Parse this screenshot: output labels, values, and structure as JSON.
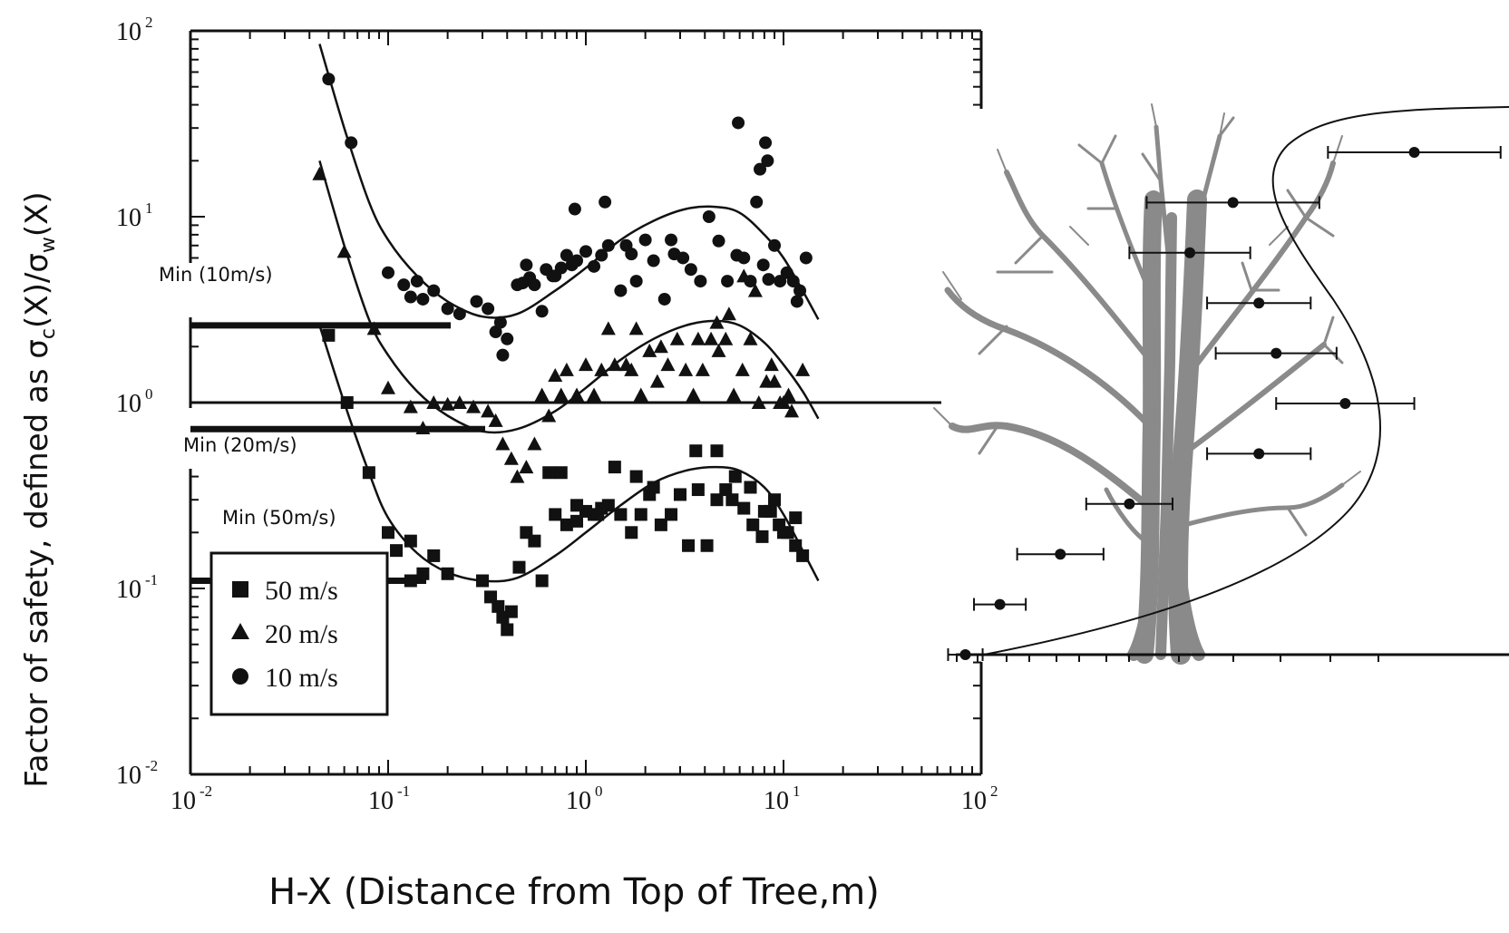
{
  "axes": {
    "ylabel_prefix": "Factor of safety, defined as σ",
    "ylabel_sub1": "c",
    "ylabel_mid": "(X)/σ",
    "ylabel_sub2": "w",
    "ylabel_suffix": "(X)",
    "xlabel": "H-X (Distance from Top of Tree,m)",
    "tick_base": "10",
    "x_tick_exponents": [
      "-2",
      "-1",
      "0",
      "1",
      "2"
    ],
    "y_tick_exponents": [
      "2",
      "1",
      "0",
      "-1",
      "-2"
    ]
  },
  "annotations": {
    "min10": "Min (10m/s)",
    "min20": "Min (20m/s)",
    "min50": "Min (50m/s)"
  },
  "legend": {
    "items": [
      {
        "label": "50 m/s",
        "marker": "square"
      },
      {
        "label": "20 m/s",
        "marker": "triangle"
      },
      {
        "label": "10 m/s",
        "marker": "circle"
      }
    ]
  },
  "colors": {
    "ink": "#111111",
    "tree": "#8a8a8a"
  },
  "chart_data": [
    {
      "type": "scatter",
      "xscale": "log",
      "yscale": "log",
      "xlim": [
        0.01,
        100
      ],
      "ylim": [
        0.01,
        100
      ],
      "reference_line_y": 1.0,
      "min_levels": {
        "10 m/s": 2.6,
        "20 m/s": 0.72,
        "50 m/s": 0.11
      },
      "series": [
        {
          "name": "50 m/s",
          "marker": "square",
          "x": [
            0.05,
            0.062,
            0.08,
            0.1,
            0.11,
            0.13,
            0.15,
            0.17,
            0.2,
            0.13,
            0.3,
            0.33,
            0.36,
            0.38,
            0.4,
            0.42,
            0.46,
            0.5,
            0.55,
            0.6,
            0.7,
            0.8,
            0.9,
            1.0,
            1.1,
            1.2,
            1.3,
            1.5,
            1.7,
            1.9,
            2.1,
            2.4,
            2.7,
            3.0,
            3.3,
            3.7,
            4.1,
            4.6,
            5.1,
            5.7,
            6.3,
            7.0,
            7.8,
            8.6,
            9.5,
            10.5,
            11.5,
            12.5,
            0.9,
            0.75,
            1.4,
            1.8,
            2.2,
            3.6,
            4.6,
            5.5,
            6.8,
            8.0,
            9.0,
            10.0,
            11.5,
            0.65,
            1.15
          ],
          "y": [
            2.3,
            1.0,
            0.42,
            0.2,
            0.16,
            0.18,
            0.12,
            0.15,
            0.12,
            0.11,
            0.11,
            0.09,
            0.08,
            0.07,
            0.06,
            0.075,
            0.13,
            0.2,
            0.18,
            0.11,
            0.25,
            0.22,
            0.23,
            0.26,
            0.25,
            0.27,
            0.28,
            0.25,
            0.2,
            0.25,
            0.32,
            0.22,
            0.25,
            0.32,
            0.17,
            0.34,
            0.17,
            0.3,
            0.34,
            0.4,
            0.27,
            0.22,
            0.19,
            0.26,
            0.22,
            0.2,
            0.17,
            0.15,
            0.28,
            0.42,
            0.45,
            0.4,
            0.35,
            0.55,
            0.55,
            0.3,
            0.35,
            0.26,
            0.3,
            0.2,
            0.24,
            0.42,
            0.25
          ]
        },
        {
          "name": "20 m/s",
          "marker": "triangle",
          "x": [
            0.045,
            0.06,
            0.085,
            0.1,
            0.13,
            0.15,
            0.17,
            0.2,
            0.23,
            0.27,
            0.32,
            0.35,
            0.38,
            0.42,
            0.45,
            0.5,
            0.55,
            0.6,
            0.65,
            0.75,
            0.8,
            0.9,
            1.0,
            1.1,
            1.2,
            1.4,
            1.6,
            1.9,
            2.1,
            2.4,
            2.6,
            2.9,
            3.2,
            3.5,
            3.9,
            4.3,
            4.7,
            5.1,
            5.6,
            6.2,
            6.8,
            7.5,
            8.2,
            9.0,
            10.0,
            11.0,
            12.5,
            0.7,
            1.3,
            1.7,
            2.3,
            3.7,
            4.6,
            5.3,
            6.3,
            7.2,
            8.7,
            9.6,
            10.6,
            1.8
          ],
          "y": [
            17,
            6.5,
            2.5,
            1.2,
            0.95,
            0.73,
            1.0,
            0.98,
            1.0,
            0.95,
            0.9,
            0.8,
            0.6,
            0.5,
            0.4,
            0.45,
            0.6,
            1.1,
            0.85,
            1.1,
            1.5,
            1.1,
            1.6,
            1.1,
            1.5,
            1.6,
            1.6,
            1.1,
            1.9,
            2.0,
            1.6,
            2.2,
            1.5,
            1.1,
            1.5,
            2.2,
            1.9,
            2.2,
            1.1,
            1.5,
            2.2,
            1.0,
            1.3,
            1.3,
            1.0,
            0.9,
            1.5,
            1.4,
            2.5,
            1.5,
            1.3,
            2.2,
            2.7,
            3.0,
            4.8,
            4.0,
            1.6,
            1.0,
            1.1,
            2.5
          ]
        },
        {
          "name": "10 m/s",
          "marker": "circle",
          "x": [
            0.05,
            0.065,
            0.1,
            0.12,
            0.13,
            0.14,
            0.15,
            0.17,
            0.2,
            0.23,
            0.28,
            0.32,
            0.35,
            0.37,
            0.38,
            0.4,
            0.45,
            0.48,
            0.5,
            0.52,
            0.55,
            0.6,
            0.63,
            0.68,
            0.75,
            0.8,
            0.85,
            0.9,
            1.0,
            1.1,
            1.2,
            1.3,
            1.5,
            1.6,
            1.8,
            2.0,
            2.2,
            2.5,
            2.8,
            3.1,
            3.4,
            3.8,
            4.2,
            4.7,
            5.2,
            5.8,
            6.3,
            6.8,
            7.3,
            7.9,
            8.4,
            9.0,
            9.6,
            10.4,
            11.2,
            12.1,
            13.0,
            0.88,
            0.7,
            1.25,
            1.7,
            2.7,
            5.9,
            7.6,
            8.1,
            8.3,
            11.7
          ],
          "y": [
            55,
            25,
            5.0,
            4.3,
            3.7,
            4.5,
            3.6,
            4.0,
            3.2,
            3.0,
            3.5,
            3.2,
            2.4,
            2.7,
            1.8,
            2.2,
            4.3,
            4.4,
            5.5,
            4.7,
            4.3,
            3.1,
            5.2,
            4.8,
            5.3,
            6.2,
            5.5,
            5.8,
            6.5,
            5.4,
            6.2,
            7.0,
            4.0,
            7.0,
            4.5,
            7.5,
            5.8,
            3.6,
            6.3,
            6.0,
            5.2,
            4.5,
            10.0,
            7.4,
            4.5,
            6.2,
            6.0,
            4.5,
            12.0,
            5.5,
            4.6,
            7.0,
            4.5,
            5.0,
            4.5,
            4.0,
            6.0,
            11.0,
            4.8,
            12.0,
            6.3,
            7.5,
            32,
            18,
            25,
            20,
            3.5
          ]
        }
      ],
      "fit_curves": [
        {
          "name": "10 m/s",
          "x": [
            0.045,
            0.06,
            0.08,
            0.1,
            0.14,
            0.2,
            0.3,
            0.45,
            0.7,
            1.0,
            1.5,
            2.2,
            3.2,
            4.5,
            6.0,
            8.0,
            10.0,
            12.5,
            15.0
          ],
          "y": [
            85,
            30,
            12,
            7.5,
            4.8,
            3.5,
            2.9,
            3.0,
            4.0,
            5.3,
            7.5,
            9.5,
            11.0,
            11.3,
            10.5,
            8.0,
            6.0,
            4.0,
            2.8
          ]
        },
        {
          "name": "20 m/s",
          "x": [
            0.045,
            0.06,
            0.08,
            0.1,
            0.14,
            0.2,
            0.3,
            0.45,
            0.7,
            1.0,
            1.5,
            2.2,
            3.2,
            4.5,
            6.0,
            8.0,
            10.0,
            12.5,
            15.0
          ],
          "y": [
            20,
            7.0,
            2.8,
            1.8,
            1.15,
            0.85,
            0.7,
            0.72,
            0.9,
            1.2,
            1.7,
            2.2,
            2.6,
            2.75,
            2.6,
            2.1,
            1.6,
            1.15,
            0.82
          ]
        },
        {
          "name": "50 m/s",
          "x": [
            0.045,
            0.06,
            0.08,
            0.1,
            0.14,
            0.2,
            0.3,
            0.45,
            0.7,
            1.0,
            1.5,
            2.2,
            3.2,
            4.5,
            6.0,
            8.0,
            10.0,
            12.5,
            15.0
          ],
          "y": [
            2.6,
            1.0,
            0.42,
            0.24,
            0.155,
            0.122,
            0.11,
            0.114,
            0.15,
            0.2,
            0.28,
            0.37,
            0.43,
            0.45,
            0.43,
            0.35,
            0.25,
            0.16,
            0.11
          ]
        }
      ]
    },
    {
      "type": "scatter",
      "note_markers": "circle with horizontal error bars",
      "points": [
        {
          "x": 0.53,
          "xerr": 0.1
        },
        {
          "x": 0.32,
          "xerr": 0.1
        },
        {
          "x": 0.27,
          "xerr": 0.07
        },
        {
          "x": 0.35,
          "xerr": 0.06
        },
        {
          "x": 0.37,
          "xerr": 0.07
        },
        {
          "x": 0.45,
          "xerr": 0.08
        },
        {
          "x": 0.35,
          "xerr": 0.06
        },
        {
          "x": 0.2,
          "xerr": 0.05
        },
        {
          "x": 0.12,
          "xerr": 0.05
        },
        {
          "x": 0.05,
          "xerr": 0.03
        },
        {
          "x": 0.01,
          "xerr": 0.02
        }
      ]
    }
  ]
}
